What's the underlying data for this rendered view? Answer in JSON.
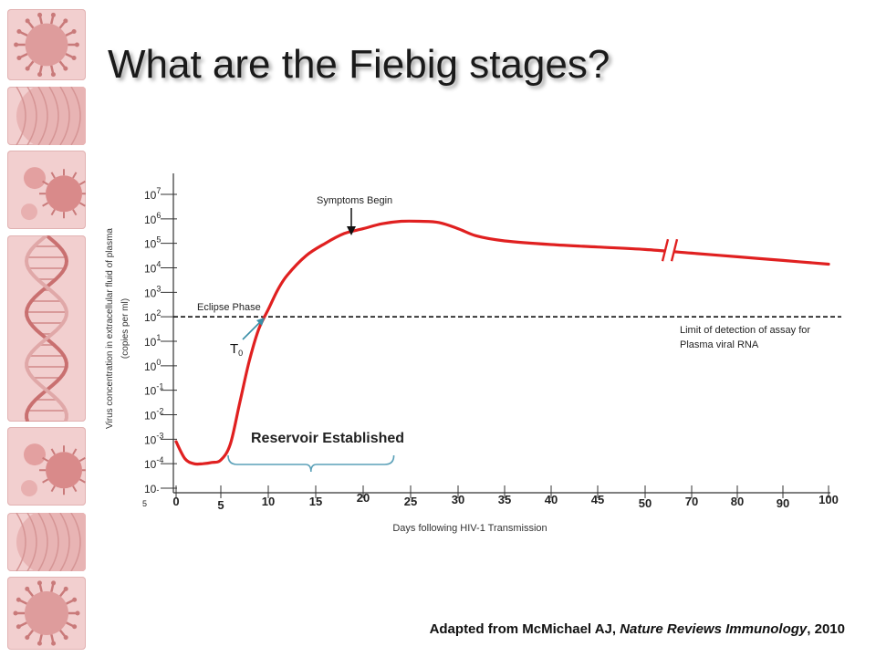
{
  "slide": {
    "title": "What are the Fiebig stages?",
    "citation": {
      "prefix": "Adapted from McMichael AJ, ",
      "journal": "Nature Reviews Immunology",
      "suffix": ", 2010"
    }
  },
  "sidebar": {
    "tiles": [
      {
        "icon": "virus-particle-icon"
      },
      {
        "icon": "cell-surface-icon"
      },
      {
        "icon": "virus-cluster-icon"
      },
      {
        "icon": "dna-helix-icon"
      },
      {
        "icon": "virus-cluster-icon"
      },
      {
        "icon": "cell-surface-icon"
      },
      {
        "icon": "virus-particle-icon"
      }
    ]
  },
  "chart_data": {
    "type": "line",
    "title": "",
    "xlabel": "Days following HIV-1 Transmission",
    "ylabel_lines": [
      "Virus concentration in extracellular fluid of plasma",
      "(copies per ml)"
    ],
    "x_ticks": [
      "0",
      "5",
      "10",
      "15",
      "20",
      "25",
      "30",
      "35",
      "40",
      "45",
      "50",
      "70",
      "80",
      "90",
      "100"
    ],
    "y_ticks": [
      {
        "base": "10",
        "exp": "7"
      },
      {
        "base": "10",
        "exp": "6"
      },
      {
        "base": "10",
        "exp": "5"
      },
      {
        "base": "10",
        "exp": "4"
      },
      {
        "base": "10",
        "exp": "3"
      },
      {
        "base": "10",
        "exp": "2"
      },
      {
        "base": "10",
        "exp": "1"
      },
      {
        "base": "10",
        "exp": "0"
      },
      {
        "base": "10",
        "exp": "-1"
      },
      {
        "base": "10",
        "exp": "-2"
      },
      {
        "base": "10",
        "exp": "-3"
      },
      {
        "base": "10",
        "exp": "-4"
      },
      {
        "base": "10",
        "exp": "-5"
      }
    ],
    "y_scale": "log10",
    "ylim_exp": [
      -5,
      7.5
    ],
    "series": [
      {
        "color": "#e02020",
        "x": [
          0,
          1,
          2,
          3,
          4,
          5,
          6,
          7,
          8,
          9,
          10,
          11,
          12,
          14,
          16,
          18,
          20,
          22,
          24,
          26,
          28,
          30,
          32,
          35,
          40,
          45,
          50,
          70,
          80,
          90,
          100
        ],
        "y_exp": [
          -3.1,
          -3.8,
          -4.0,
          -4.0,
          -3.95,
          -3.85,
          -3.2,
          -1.5,
          0.2,
          1.5,
          2.3,
          3.1,
          3.7,
          4.5,
          5.0,
          5.4,
          5.6,
          5.8,
          5.9,
          5.9,
          5.85,
          5.6,
          5.3,
          5.1,
          4.95,
          4.85,
          4.75,
          4.6,
          4.45,
          4.3,
          4.15
        ]
      }
    ],
    "detection_limit": {
      "y_exp": 2,
      "label_lines": [
        "Limit of detection of assay for",
        "Plasma viral RNA"
      ]
    },
    "axis_break_between": [
      "50",
      "70"
    ],
    "annotations": {
      "eclipse": "Eclipse Phase",
      "t0_base": "T",
      "t0_sub": "0",
      "symptoms": "Symptoms Begin",
      "reservoir": "Reservoir Established"
    },
    "reservoir_span_days": [
      5,
      24
    ],
    "colors": {
      "curve": "#e02020",
      "pointer": "#3a8fa8",
      "brace": "#5aa0b8",
      "axis": "#333333"
    }
  }
}
